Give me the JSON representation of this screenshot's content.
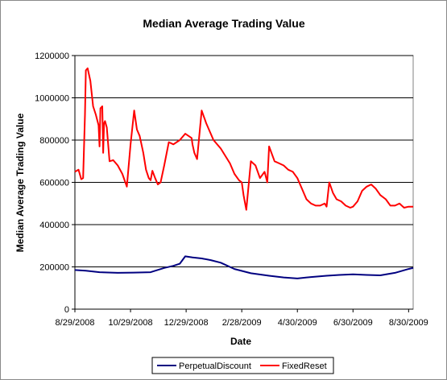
{
  "chart_data": {
    "type": "line",
    "title": "Median Average Trading Value",
    "xlabel": "Date",
    "ylabel": "Median Average Trading Value",
    "ylim": [
      0,
      1200000
    ],
    "yticks": [
      0,
      200000,
      400000,
      600000,
      800000,
      1000000,
      1200000
    ],
    "ytick_labels": [
      "0",
      "200000",
      "400000",
      "600000",
      "800000",
      "1000000",
      "1200000"
    ],
    "xlim": [
      "2008-08-29",
      "2009-09-04"
    ],
    "xtick_labels": [
      "8/29/2008",
      "10/29/2008",
      "12/29/2008",
      "2/28/2009",
      "4/30/2009",
      "6/30/2009",
      "8/30/2009"
    ],
    "xtick_dates": [
      "2008-08-29",
      "2008-10-29",
      "2008-12-29",
      "2009-02-28",
      "2009-04-30",
      "2009-06-30",
      "2009-08-30"
    ],
    "grid": "horizontal",
    "legend_position": "bottom",
    "series": [
      {
        "name": "PerpetualDiscount",
        "color": "#000080",
        "x": [
          "2008-08-29",
          "2008-09-10",
          "2008-09-25",
          "2008-10-15",
          "2008-11-01",
          "2008-11-20",
          "2008-12-05",
          "2008-12-15",
          "2008-12-22",
          "2008-12-28",
          "2009-01-05",
          "2009-01-15",
          "2009-01-25",
          "2009-02-05",
          "2009-02-20",
          "2009-03-10",
          "2009-03-30",
          "2009-04-15",
          "2009-04-30",
          "2009-05-15",
          "2009-06-01",
          "2009-06-15",
          "2009-06-30",
          "2009-07-15",
          "2009-07-30",
          "2009-08-15",
          "2009-08-30",
          "2009-09-04"
        ],
        "y": [
          185000,
          182000,
          175000,
          172000,
          173000,
          175000,
          195000,
          205000,
          215000,
          250000,
          245000,
          240000,
          232000,
          220000,
          190000,
          170000,
          158000,
          150000,
          145000,
          152000,
          158000,
          162000,
          165000,
          162000,
          160000,
          172000,
          190000,
          195000
        ]
      },
      {
        "name": "FixedReset",
        "color": "#ff0000",
        "x": [
          "2008-08-29",
          "2008-09-02",
          "2008-09-05",
          "2008-09-07",
          "2008-09-09",
          "2008-09-10",
          "2008-09-12",
          "2008-09-15",
          "2008-09-18",
          "2008-09-21",
          "2008-09-24",
          "2008-09-25",
          "2008-09-26",
          "2008-09-28",
          "2008-09-29",
          "2008-09-30",
          "2008-10-01",
          "2008-10-03",
          "2008-10-06",
          "2008-10-10",
          "2008-10-15",
          "2008-10-20",
          "2008-10-25",
          "2008-10-29",
          "2008-11-02",
          "2008-11-05",
          "2008-11-08",
          "2008-11-12",
          "2008-11-15",
          "2008-11-18",
          "2008-11-20",
          "2008-11-22",
          "2008-11-25",
          "2008-11-28",
          "2008-12-01",
          "2008-12-05",
          "2008-12-10",
          "2008-12-15",
          "2008-12-22",
          "2008-12-28",
          "2009-01-04",
          "2009-01-05",
          "2009-01-07",
          "2009-01-10",
          "2009-01-15",
          "2009-01-20",
          "2009-01-28",
          "2009-02-05",
          "2009-02-15",
          "2009-02-20",
          "2009-02-25",
          "2009-02-28",
          "2009-03-02",
          "2009-03-05",
          "2009-03-10",
          "2009-03-15",
          "2009-03-20",
          "2009-03-25",
          "2009-03-28",
          "2009-03-30",
          "2009-04-05",
          "2009-04-10",
          "2009-04-15",
          "2009-04-20",
          "2009-04-25",
          "2009-04-30",
          "2009-05-05",
          "2009-05-10",
          "2009-05-15",
          "2009-05-20",
          "2009-05-25",
          "2009-05-30",
          "2009-06-01",
          "2009-06-04",
          "2009-06-08",
          "2009-06-12",
          "2009-06-17",
          "2009-06-22",
          "2009-06-27",
          "2009-06-30",
          "2009-07-05",
          "2009-07-10",
          "2009-07-15",
          "2009-07-20",
          "2009-07-25",
          "2009-07-30",
          "2009-08-05",
          "2009-08-10",
          "2009-08-15",
          "2009-08-20",
          "2009-08-25",
          "2009-08-30",
          "2009-09-04"
        ],
        "y": [
          650000,
          660000,
          615000,
          620000,
          920000,
          1130000,
          1140000,
          1080000,
          960000,
          920000,
          870000,
          770000,
          950000,
          960000,
          740000,
          880000,
          890000,
          860000,
          700000,
          705000,
          680000,
          640000,
          580000,
          780000,
          940000,
          850000,
          820000,
          740000,
          660000,
          620000,
          610000,
          655000,
          620000,
          590000,
          600000,
          680000,
          790000,
          780000,
          800000,
          830000,
          810000,
          780000,
          740000,
          710000,
          940000,
          880000,
          800000,
          760000,
          690000,
          640000,
          610000,
          600000,
          540000,
          470000,
          700000,
          680000,
          620000,
          650000,
          600000,
          770000,
          700000,
          690000,
          680000,
          660000,
          650000,
          620000,
          570000,
          520000,
          500000,
          490000,
          490000,
          500000,
          485000,
          600000,
          550000,
          520000,
          510000,
          490000,
          480000,
          485000,
          510000,
          560000,
          580000,
          590000,
          570000,
          540000,
          520000,
          490000,
          490000,
          500000,
          480000,
          485000,
          485000
        ]
      }
    ]
  }
}
